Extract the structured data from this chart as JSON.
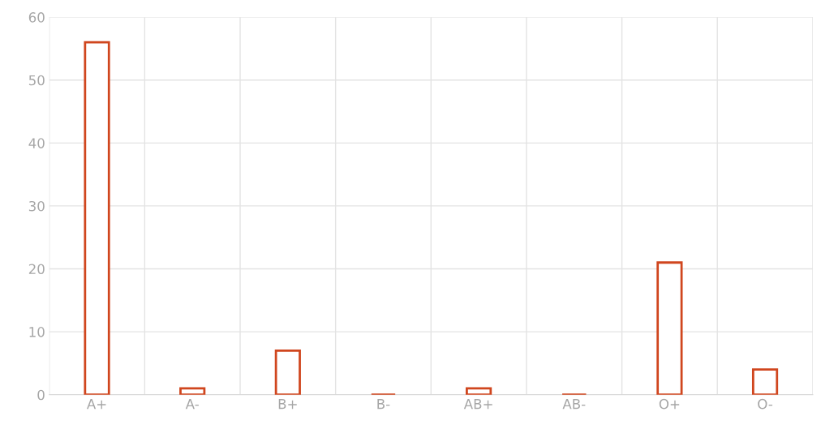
{
  "chart_data": {
    "type": "bar",
    "categories": [
      "A+",
      "A-",
      "B+",
      "B-",
      "AB+",
      "AB-",
      "O+",
      "O-"
    ],
    "values": [
      56,
      1,
      7,
      0,
      1,
      0,
      21,
      4
    ],
    "color": "#d0461e",
    "ylim": [
      0,
      60
    ],
    "yticks": [
      0,
      10,
      20,
      30,
      40,
      50,
      60
    ],
    "grid": true,
    "legend": false
  }
}
